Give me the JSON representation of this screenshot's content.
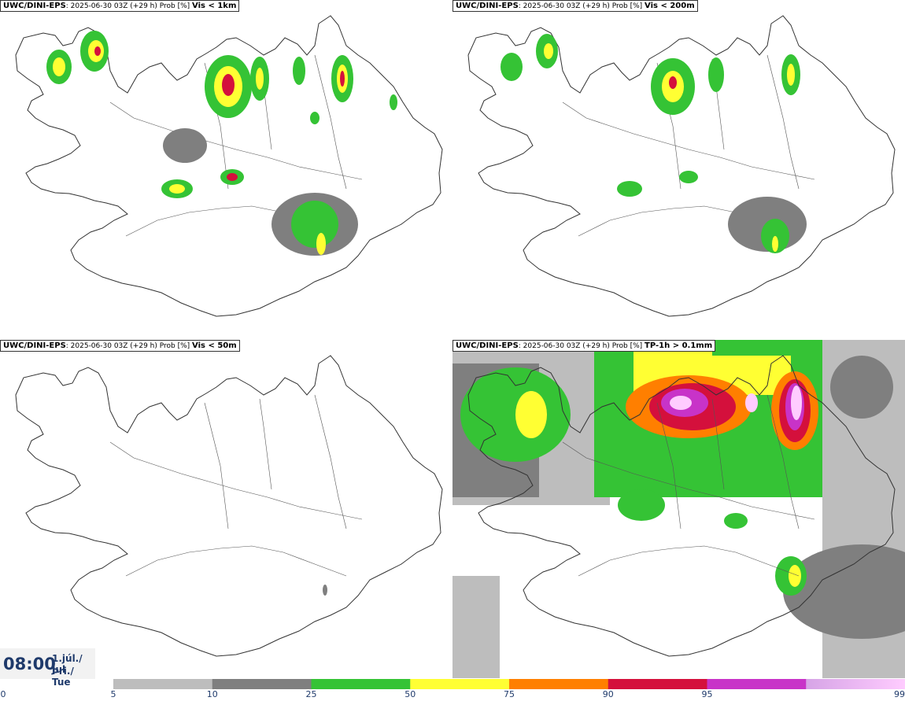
{
  "panels": [
    {
      "model": "UWC/DINI-EPS",
      "info": ": 2025-06-30 03Z (+29 h) Prob [%]",
      "param": "Vis < 1km"
    },
    {
      "model": "UWC/DINI-EPS",
      "info": ": 2025-06-30 03Z (+29 h) Prob [%]",
      "param": "Vis < 200m"
    },
    {
      "model": "UWC/DINI-EPS",
      "info": ": 2025-06-30 03Z (+29 h) Prob [%]",
      "param": "Vis < 50m"
    },
    {
      "model": "UWC/DINI-EPS",
      "info": ": 2025-06-30 03Z (+29 h) Prob [%]",
      "param": "TP-1h > 0.1mm"
    }
  ],
  "valid_time": {
    "clock": "08:00",
    "date_line1": "1.júl./ Jul",
    "date_line2": "Þri./ Tue"
  },
  "colorbar": {
    "labels": [
      "0",
      "5",
      "10",
      "25",
      "50",
      "75",
      "90",
      "95",
      "99"
    ],
    "colors": [
      "#bdbdbd",
      "#7f7f7f",
      "#35c335",
      "#ffff33",
      "#ff7f00",
      "#d4103c",
      "#c833c8",
      "#ffccff"
    ],
    "start_color": "#d6a4e6"
  },
  "map_colors": {
    "coast": "#333333",
    "p5": "#bdbdbd",
    "p10": "#7f7f7f",
    "p25": "#35c335",
    "p50": "#ffff33",
    "p75": "#ff7f00",
    "p90": "#d4103c",
    "p95": "#c833c8",
    "p99": "#ffccff"
  }
}
